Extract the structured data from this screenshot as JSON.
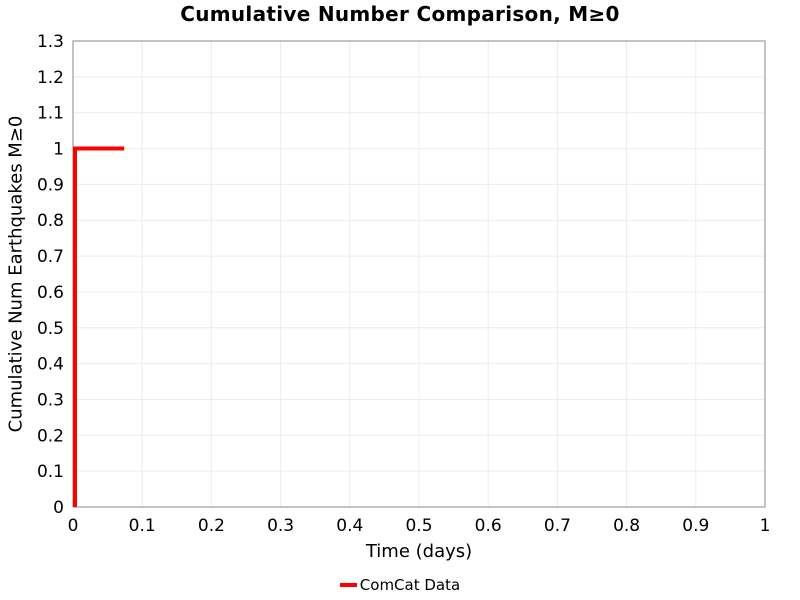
{
  "chart_data": {
    "type": "line",
    "title": "Cumulative Number Comparison, M≥0",
    "xlabel": "Time (days)",
    "ylabel": "Cumulative Num Earthquakes M≥0",
    "xlim": [
      0,
      1
    ],
    "ylim": [
      0,
      1.3
    ],
    "grid": true,
    "legend_position": "bottom-center",
    "xticks": {
      "values": [
        0,
        0.1,
        0.2,
        0.3,
        0.4,
        0.5,
        0.6,
        0.7,
        0.8,
        0.9,
        1
      ],
      "labels": [
        "0",
        "0.1",
        "0.2",
        "0.3",
        "0.4",
        "0.5",
        "0.6",
        "0.7",
        "0.8",
        "0.9",
        "1"
      ]
    },
    "yticks": {
      "values": [
        0,
        0.1,
        0.2,
        0.3,
        0.4,
        0.5,
        0.6,
        0.7,
        0.8,
        0.9,
        1,
        1.1,
        1.2,
        1.3
      ],
      "labels": [
        "0",
        "0.1",
        "0.2",
        "0.3",
        "0.4",
        "0.5",
        "0.6",
        "0.7",
        "0.8",
        "0.9",
        "1",
        "1.1",
        "1.2",
        "1.3"
      ]
    },
    "colors": {
      "background": "#ffffff",
      "grid": "#ececec",
      "spine": "#a3a3a3",
      "text": "#000000",
      "series_red": "#ff0000"
    },
    "series": [
      {
        "name": "ComCat Data",
        "color": "#ff0000",
        "style": "step",
        "linewidth": 4,
        "x": [
          0,
          0,
          0.074
        ],
        "y": [
          0,
          1,
          1
        ]
      }
    ],
    "legend": {
      "entries": [
        {
          "label": "ComCat Data",
          "color": "#ff0000"
        }
      ]
    }
  }
}
